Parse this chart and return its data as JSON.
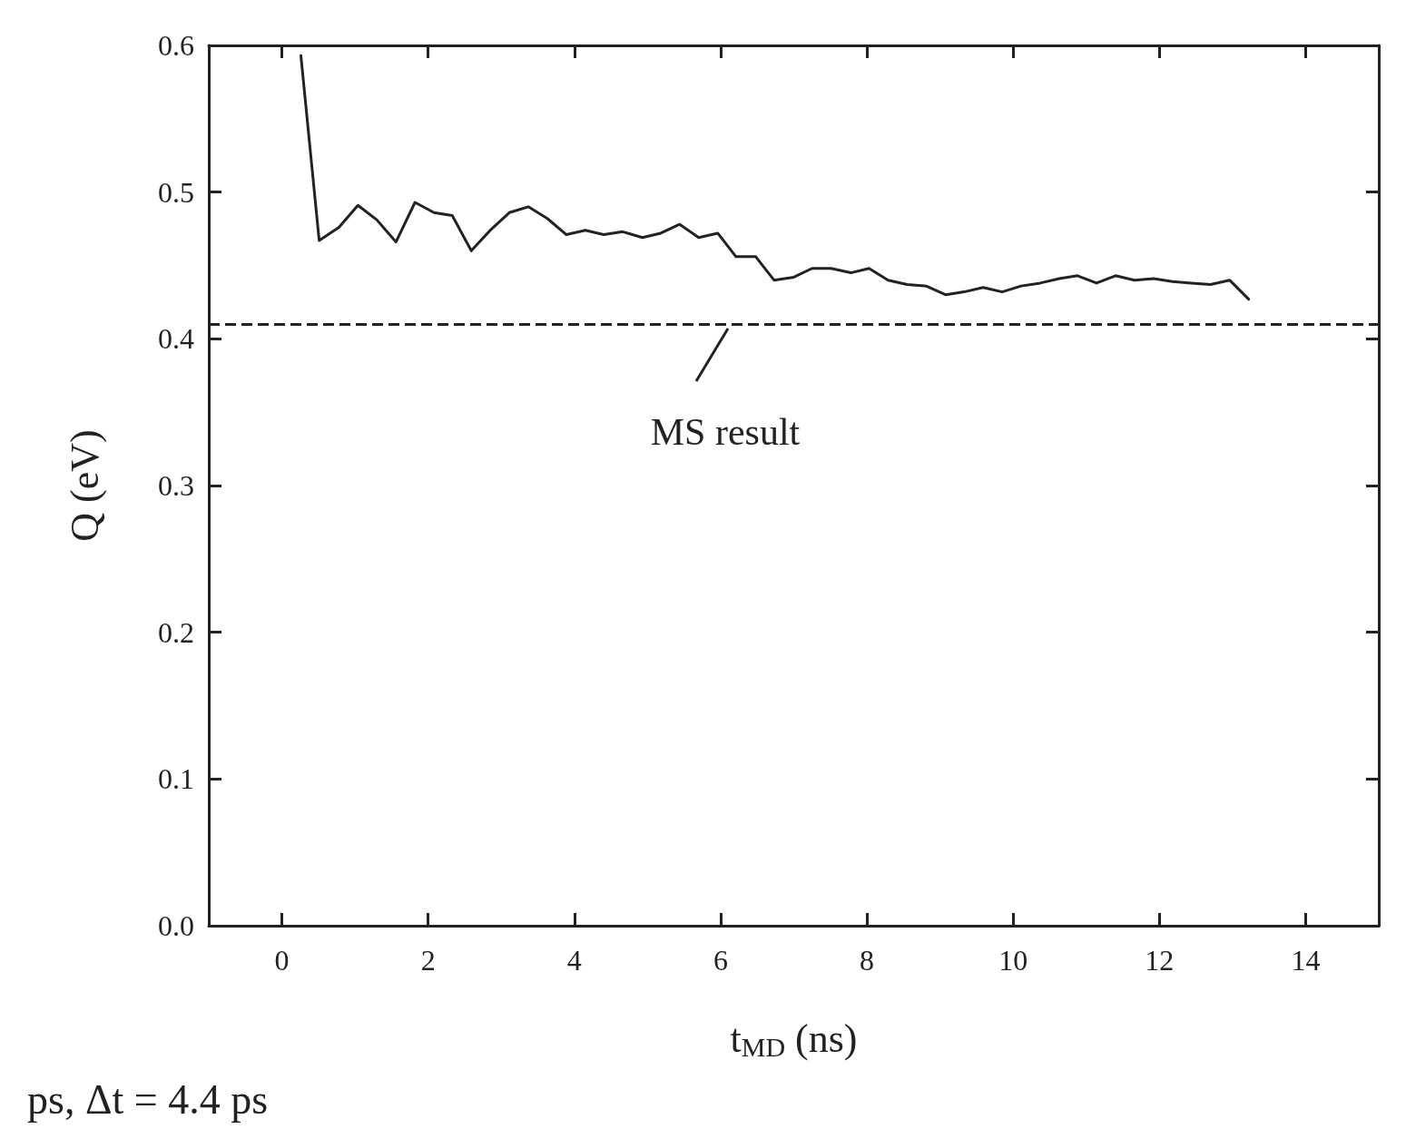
{
  "chart_data": {
    "type": "line",
    "xlabel": "t$_{MD}$ (ns)",
    "ylabel": "Q (eV)",
    "x": [
      0.26,
      0.51,
      0.78,
      1.04,
      1.3,
      1.56,
      1.82,
      2.08,
      2.33,
      2.59,
      2.85,
      3.11,
      3.37,
      3.63,
      3.89,
      4.15,
      4.4,
      4.66,
      4.93,
      5.18,
      5.44,
      5.7,
      5.96,
      6.21,
      6.48,
      6.73,
      7.0,
      7.25,
      7.51,
      7.78,
      8.03,
      8.29,
      8.55,
      8.81,
      9.08,
      9.33,
      9.59,
      9.85,
      10.11,
      10.37,
      10.63,
      10.88,
      11.14,
      11.4,
      11.66,
      11.92,
      12.18,
      12.44,
      12.7,
      12.96,
      13.22
    ],
    "series": [
      {
        "color": "#222222",
        "values": [
          0.593,
          0.467,
          0.476,
          0.491,
          0.481,
          0.466,
          0.493,
          0.486,
          0.484,
          0.46,
          0.474,
          0.486,
          0.49,
          0.482,
          0.471,
          0.474,
          0.471,
          0.473,
          0.469,
          0.472,
          0.478,
          0.469,
          0.472,
          0.456,
          0.456,
          0.44,
          0.442,
          0.448,
          0.448,
          0.445,
          0.448,
          0.44,
          0.437,
          0.436,
          0.43,
          0.432,
          0.435,
          0.432,
          0.436,
          0.438,
          0.441,
          0.443,
          0.438,
          0.443,
          0.44,
          0.441,
          0.439,
          0.438,
          0.437,
          0.44,
          0.427
        ]
      }
    ],
    "xlim": [
      -1,
      15
    ],
    "xticks": [
      0,
      2,
      4,
      6,
      8,
      10,
      12,
      14
    ],
    "ylim": [
      0,
      0.6
    ],
    "yticks": [
      {
        "value": 0,
        "label": "0.0"
      },
      0.1,
      0.2,
      0.3,
      0.4,
      0.5,
      0.6
    ],
    "ref_lines": [
      {
        "axis": "y",
        "value": 0.411,
        "color": "#222222",
        "line_style": "dashed"
      }
    ],
    "annotations": [
      {
        "text": "MS result",
        "x": 6.1,
        "y": 0.411
      },
      "ps, Δt = 4.4 ps"
    ],
    "marker": "none",
    "line_style": "solid",
    "grid": false
  }
}
